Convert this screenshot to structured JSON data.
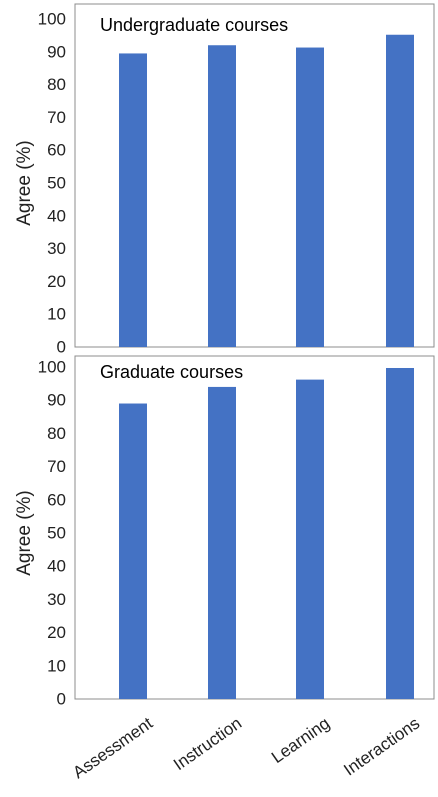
{
  "chart_data": [
    {
      "type": "bar",
      "title": "Undergraduate courses",
      "ylabel": "Agree (%)",
      "xlabel": "",
      "ylim": [
        0,
        100
      ],
      "yticks": [
        0,
        10,
        20,
        30,
        40,
        50,
        60,
        70,
        80,
        90,
        100
      ],
      "categories": [
        "Assessment",
        "Instruction",
        "Learning",
        "Interactions"
      ],
      "values": [
        89.5,
        92,
        91.3,
        95.2
      ],
      "bar_color": "#4472C4",
      "grid": false
    },
    {
      "type": "bar",
      "title": "Graduate courses",
      "ylabel": "Agree (%)",
      "xlabel": "",
      "ylim": [
        0,
        100
      ],
      "yticks": [
        0,
        10,
        20,
        30,
        40,
        50,
        60,
        70,
        80,
        90,
        100
      ],
      "categories": [
        "Assessment",
        "Instruction",
        "Learning",
        "Interactions"
      ],
      "values": [
        89,
        94,
        96.2,
        99.7
      ],
      "bar_color": "#4472C4",
      "grid": false
    }
  ]
}
